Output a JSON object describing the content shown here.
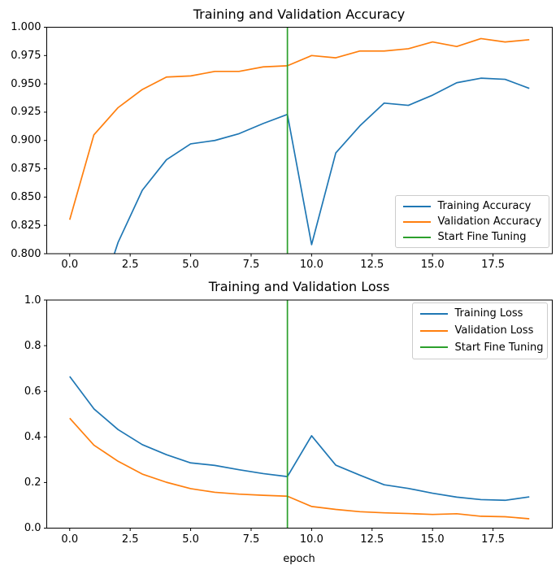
{
  "colors": {
    "training": "#1f77b4",
    "validation": "#ff7f0e",
    "fine_tuning": "#2ca02c",
    "axis": "#000000",
    "legend_border": "#cccccc",
    "background": "#ffffff"
  },
  "chart_data": [
    {
      "type": "line",
      "title": "Training and Validation Accuracy",
      "xlabel": "",
      "ylabel": "",
      "x": [
        0,
        1,
        2,
        3,
        4,
        5,
        6,
        7,
        8,
        9,
        10,
        11,
        12,
        13,
        14,
        15,
        16,
        17,
        18,
        19
      ],
      "xlim": [
        -0.95,
        19.95
      ],
      "ylim": [
        0.8,
        1.0
      ],
      "grid": false,
      "x_ticks": [
        0,
        2.5,
        5,
        7.5,
        10,
        12.5,
        15,
        17.5
      ],
      "x_tick_labels": [
        "0.0",
        "2.5",
        "5.0",
        "7.5",
        "10.0",
        "12.5",
        "15.0",
        "17.5"
      ],
      "y_ticks": [
        1.0,
        0.975,
        0.95,
        0.925,
        0.9,
        0.875,
        0.85,
        0.825,
        0.8
      ],
      "y_tick_labels": [
        "1.000",
        "0.975",
        "0.950",
        "0.925",
        "0.900",
        "0.875",
        "0.850",
        "0.825",
        "0.800"
      ],
      "series": [
        {
          "name": "Training Accuracy",
          "color_key": "training",
          "values": [
            null,
            0.745,
            0.81,
            0.856,
            0.883,
            0.897,
            0.9,
            0.906,
            0.915,
            0.923,
            0.808,
            0.889,
            0.913,
            0.933,
            0.931,
            0.94,
            0.951,
            0.955,
            0.954,
            0.946
          ]
        },
        {
          "name": "Validation Accuracy",
          "color_key": "validation",
          "values": [
            0.83,
            0.905,
            0.929,
            0.945,
            0.956,
            0.957,
            0.961,
            0.961,
            0.965,
            0.966,
            0.975,
            0.973,
            0.979,
            0.979,
            0.981,
            0.987,
            0.983,
            0.99,
            0.987,
            0.989
          ]
        }
      ],
      "vline": {
        "x": 9,
        "label": "Start Fine Tuning",
        "color_key": "fine_tuning"
      },
      "legend": {
        "position": "lower right",
        "entries": [
          {
            "label": "Training Accuracy",
            "color_key": "training"
          },
          {
            "label": "Validation Accuracy",
            "color_key": "validation"
          },
          {
            "label": "Start Fine Tuning",
            "color_key": "fine_tuning"
          }
        ]
      }
    },
    {
      "type": "line",
      "title": "Training and Validation Loss",
      "xlabel": "epoch",
      "ylabel": "",
      "x": [
        0,
        1,
        2,
        3,
        4,
        5,
        6,
        7,
        8,
        9,
        10,
        11,
        12,
        13,
        14,
        15,
        16,
        17,
        18,
        19
      ],
      "xlim": [
        -0.95,
        19.95
      ],
      "ylim": [
        0.0,
        1.0
      ],
      "grid": false,
      "x_ticks": [
        0,
        2.5,
        5,
        7.5,
        10,
        12.5,
        15,
        17.5
      ],
      "x_tick_labels": [
        "0.0",
        "2.5",
        "5.0",
        "7.5",
        "10.0",
        "12.5",
        "15.0",
        "17.5"
      ],
      "y_ticks": [
        1.0,
        0.8,
        0.6,
        0.4,
        0.2,
        0.0
      ],
      "y_tick_labels": [
        "1.0",
        "0.8",
        "0.6",
        "0.4",
        "0.2",
        "0.0"
      ],
      "series": [
        {
          "name": "Training Loss",
          "color_key": "training",
          "values": [
            0.665,
            0.523,
            0.432,
            0.366,
            0.322,
            0.286,
            0.275,
            0.256,
            0.239,
            0.226,
            0.405,
            0.276,
            0.232,
            0.19,
            0.174,
            0.153,
            0.136,
            0.125,
            0.122,
            0.137
          ]
        },
        {
          "name": "Validation Loss",
          "color_key": "validation",
          "values": [
            0.482,
            0.364,
            0.293,
            0.237,
            0.201,
            0.173,
            0.157,
            0.149,
            0.144,
            0.14,
            0.095,
            0.082,
            0.072,
            0.067,
            0.064,
            0.06,
            0.063,
            0.052,
            0.05,
            0.041
          ]
        }
      ],
      "vline": {
        "x": 9,
        "label": "Start Fine Tuning",
        "color_key": "fine_tuning"
      },
      "legend": {
        "position": "upper right",
        "entries": [
          {
            "label": "Training Loss",
            "color_key": "training"
          },
          {
            "label": "Validation Loss",
            "color_key": "validation"
          },
          {
            "label": "Start Fine Tuning",
            "color_key": "fine_tuning"
          }
        ]
      }
    }
  ]
}
